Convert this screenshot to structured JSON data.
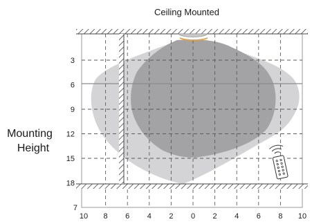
{
  "title": "Ceiling Mounted",
  "mounting_label": [
    "Mounting",
    "Height"
  ],
  "y_ticks": [
    "3",
    "6",
    "9",
    "12",
    "15",
    "18"
  ],
  "bottom_left_label": "7",
  "x_ticks": [
    "10",
    "8",
    "6",
    "4",
    "2",
    "0",
    "2",
    "4",
    "6",
    "8",
    "10"
  ],
  "colors": {
    "outer_zone": "#d4d4d6",
    "inner_zone": "#a3a3a5",
    "sensor_glow": "#e6a340",
    "hatch": "#444444"
  },
  "icons": {
    "remote": "remote-control-icon",
    "sensor": "ceiling-sensor-icon"
  }
}
